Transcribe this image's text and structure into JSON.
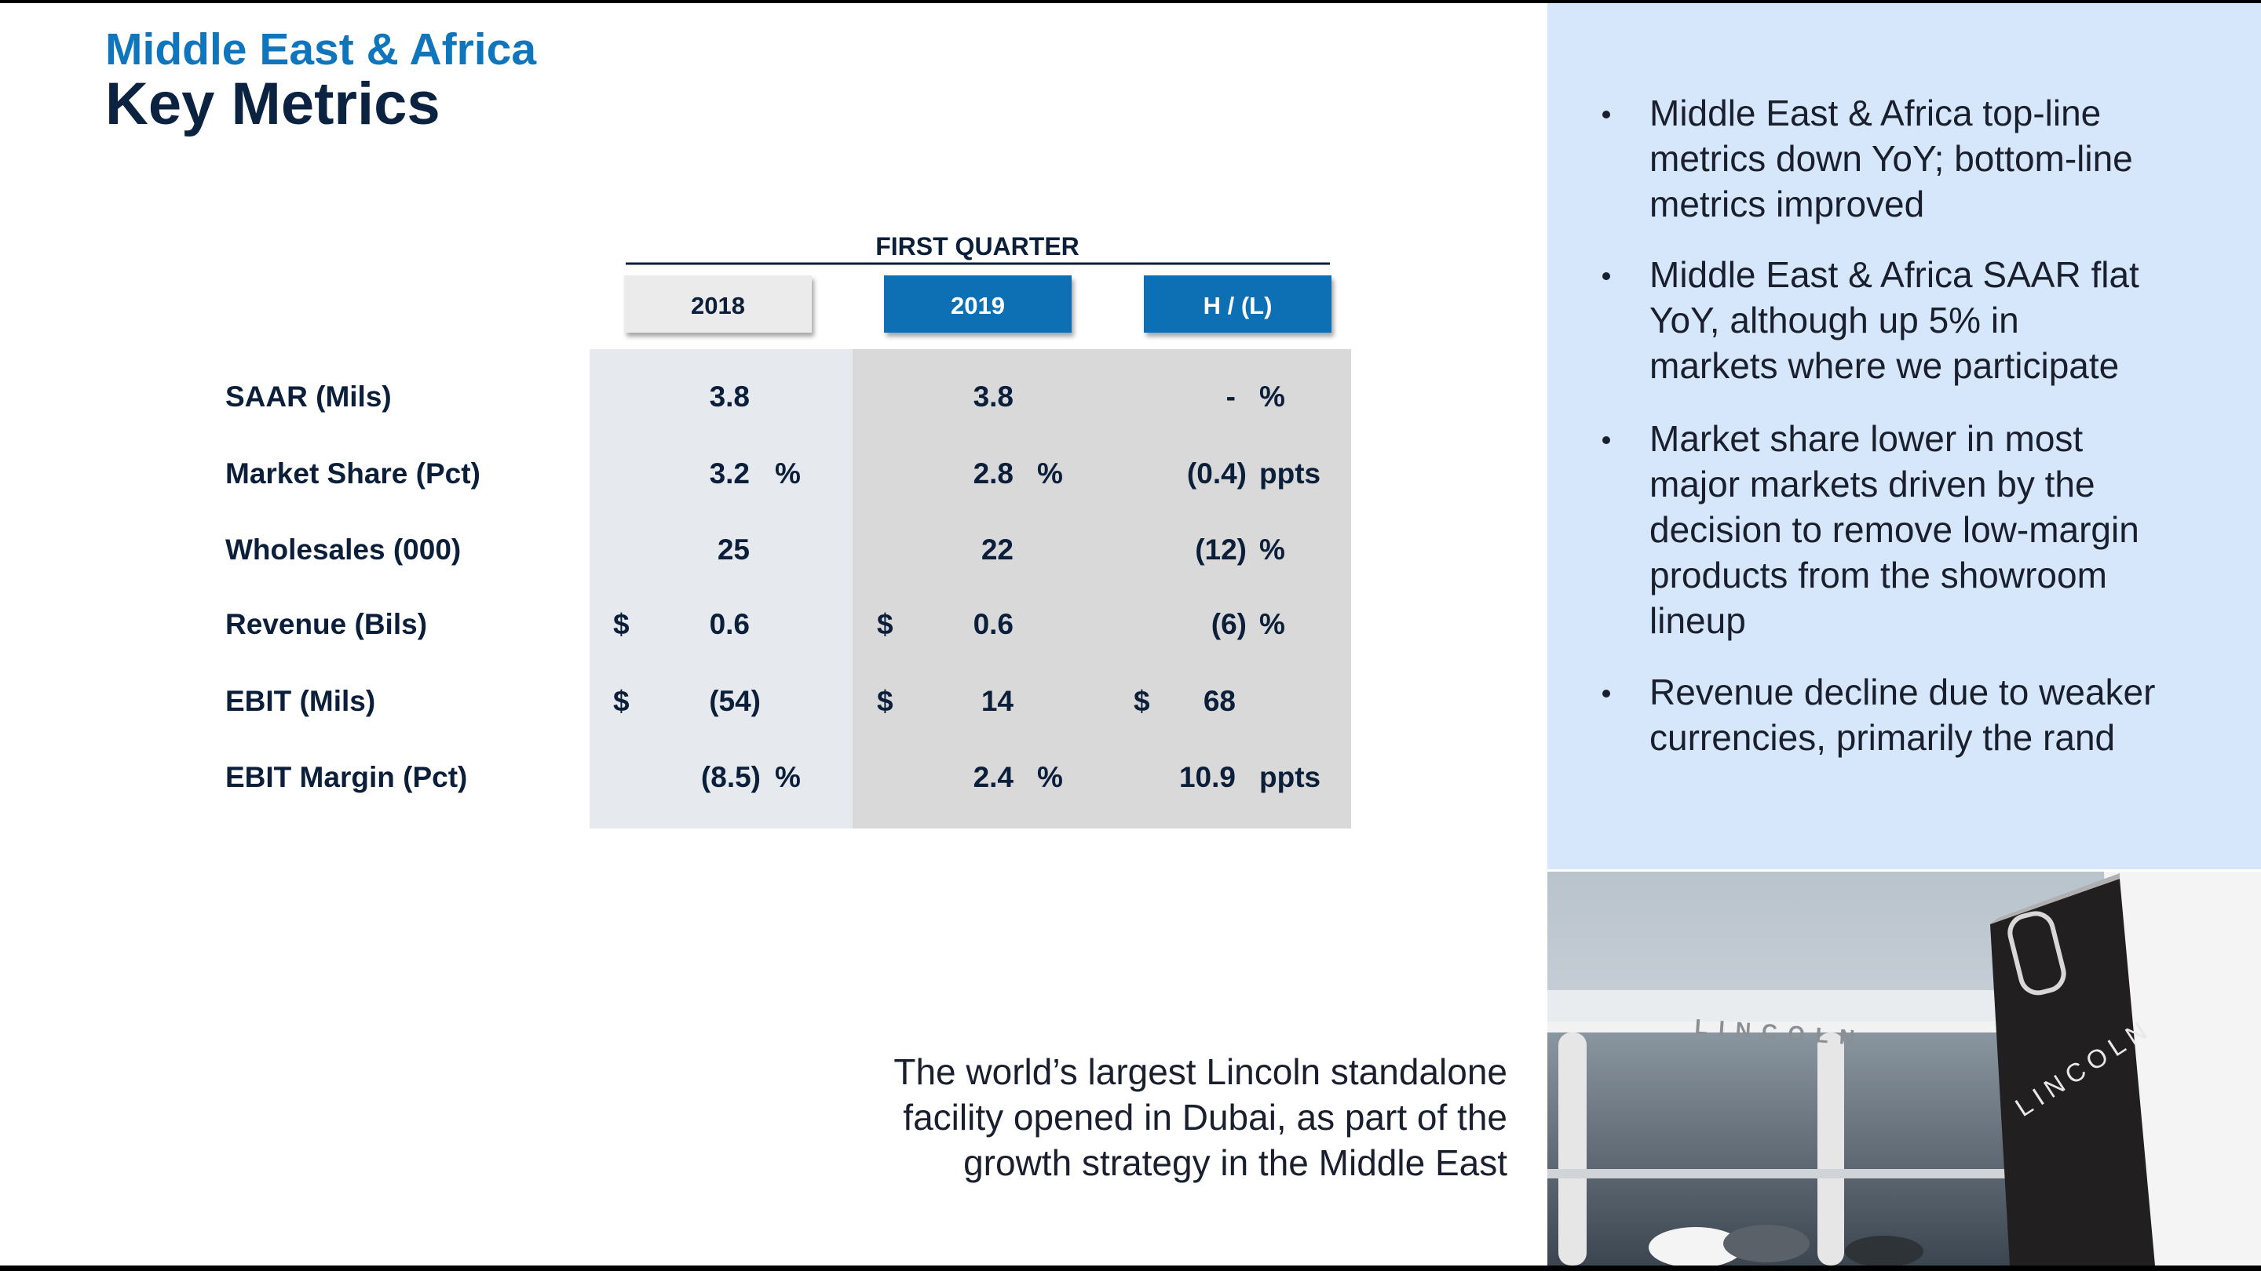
{
  "header": {
    "title": "Middle East & Africa",
    "subtitle": "Key Metrics"
  },
  "table": {
    "group": "FIRST QUARTER",
    "columns": [
      "2018",
      "2019",
      "H / (L)"
    ],
    "rows": [
      {
        "label": "SAAR (Mils)",
        "cells": [
          {
            "value": "3.8"
          },
          {
            "value": "3.8"
          },
          {
            "value": "-",
            "suffix": "%"
          }
        ]
      },
      {
        "label": "Market Share (Pct)",
        "cells": [
          {
            "value": "3.2",
            "suffix": "%"
          },
          {
            "value": "2.8",
            "suffix": "%"
          },
          {
            "value": "(0.4)",
            "suffix": "ppts"
          }
        ]
      },
      {
        "label": "Wholesales (000)",
        "cells": [
          {
            "value": "25"
          },
          {
            "value": "22"
          },
          {
            "value": "(12)",
            "suffix": "%"
          }
        ]
      },
      {
        "label": "Revenue (Bils)",
        "cells": [
          {
            "prefix": "$",
            "value": "0.6"
          },
          {
            "prefix": "$",
            "value": "0.6"
          },
          {
            "value": "(6)",
            "suffix": "%"
          }
        ]
      },
      {
        "label": "EBIT (Mils)",
        "cells": [
          {
            "prefix": "$",
            "value": "(54)"
          },
          {
            "prefix": "$",
            "value": "14"
          },
          {
            "prefix": "$",
            "value": "68"
          }
        ]
      },
      {
        "label": "EBIT Margin (Pct)",
        "cells": [
          {
            "value": "(8.5)",
            "suffix": "%"
          },
          {
            "value": "2.4",
            "suffix": "%"
          },
          {
            "value": "10.9",
            "suffix": "ppts"
          }
        ]
      }
    ]
  },
  "bullets": [
    {
      "lines": [
        "Middle East & Africa top-line",
        "metrics down YoY; bottom-line",
        "metrics improved"
      ]
    },
    {
      "lines": [
        "Middle East & Africa SAAR flat",
        "YoY, although up 5% in",
        "markets where we participate"
      ]
    },
    {
      "lines": [
        "Market share lower in most",
        "major markets driven by the",
        "decision to remove low-margin",
        "products from the showroom",
        "lineup"
      ]
    },
    {
      "lines": [
        "Revenue decline due to weaker",
        "currencies, primarily the rand"
      ]
    }
  ],
  "caption": {
    "lines": [
      "The world’s largest Lincoln standalone",
      "facility opened in Dubai, as part of the",
      "growth strategy in the Middle East"
    ]
  },
  "photo": {
    "signs": [
      "LINCOLN",
      "LINCOLN"
    ]
  }
}
